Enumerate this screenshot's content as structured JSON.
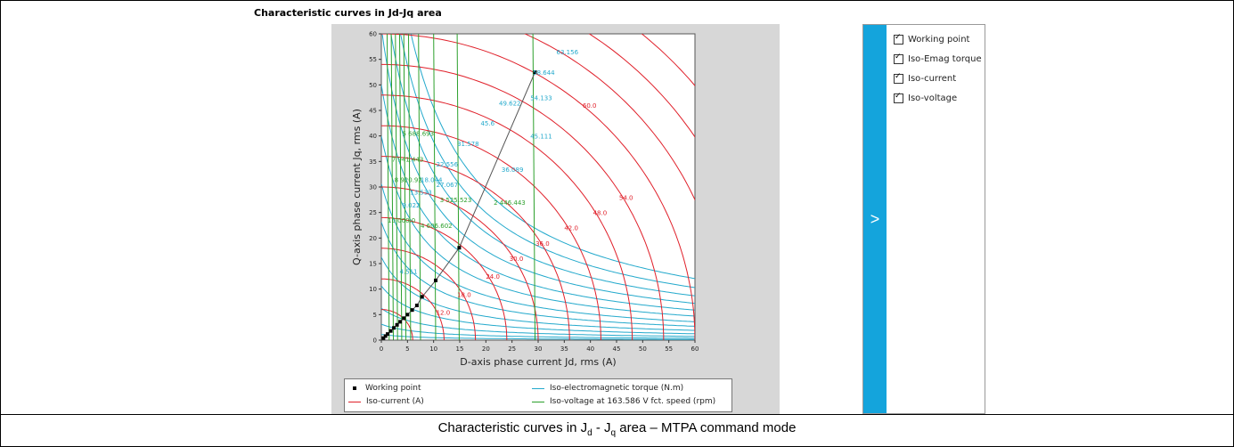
{
  "page_title": "Characteristic curves in Jd-Jq area",
  "caption": {
    "prefix": "Characteristic curves in J",
    "sub1": "d",
    "mid": " - J",
    "sub2": "q",
    "suffix": " area – MTPA command mode"
  },
  "options": [
    {
      "label": "Working point",
      "checked": true
    },
    {
      "label": "Iso-Emag torque",
      "checked": true
    },
    {
      "label": "Iso-current",
      "checked": true
    },
    {
      "label": "Iso-voltage",
      "checked": true
    }
  ],
  "panel_toggle_label": ">",
  "colors": {
    "background_panel": "#d7d7d7",
    "iso_current": "#e0202a",
    "iso_torque": "#23a9cc",
    "iso_voltage": "#2ca02c",
    "working_point": "#000000",
    "side_tab": "#14a4dc"
  },
  "chart_data": {
    "type": "line",
    "xlabel": "D-axis phase current Jd, rms (A)",
    "ylabel": "Q-axis phase current Jq, rms (A)",
    "xlim": [
      0,
      60
    ],
    "ylim": [
      0,
      60
    ],
    "xticks": [
      "0",
      "5",
      "10",
      "15",
      "20",
      "25",
      "30",
      "35",
      "40",
      "45",
      "50",
      "55",
      "60"
    ],
    "yticks": [
      "0",
      "5",
      "10",
      "15",
      "20",
      "25",
      "30",
      "35",
      "40",
      "45",
      "50",
      "55",
      "60"
    ],
    "legend": [
      {
        "name": "Working point",
        "kind": "marker"
      },
      {
        "name": "Iso-electromagnetic torque (N.m)",
        "kind": "line",
        "color": "#23a9cc"
      },
      {
        "name": "Iso-current (A)",
        "kind": "line",
        "color": "#e0202a"
      },
      {
        "name": "Iso-voltage at 163.586 V fct. speed (rpm)",
        "kind": "line",
        "color": "#2ca02c"
      }
    ],
    "iso_current": {
      "radii": [
        6,
        12,
        18,
        24,
        30,
        36,
        42,
        48,
        54,
        60,
        66,
        72,
        78
      ],
      "labels": [
        {
          "text": "12.0",
          "x": 10.5,
          "y": 5.0
        },
        {
          "text": "18.0",
          "x": 14.5,
          "y": 8.5
        },
        {
          "text": "24.0",
          "x": 20.0,
          "y": 12.0
        },
        {
          "text": "30.0",
          "x": 24.5,
          "y": 15.5
        },
        {
          "text": "36.0",
          "x": 29.5,
          "y": 18.5
        },
        {
          "text": "42.0",
          "x": 35.0,
          "y": 21.5
        },
        {
          "text": "48.0",
          "x": 40.5,
          "y": 24.5
        },
        {
          "text": "54.0",
          "x": 45.5,
          "y": 27.5
        },
        {
          "text": "60.0",
          "x": 38.5,
          "y": 45.5
        }
      ]
    },
    "iso_torque": {
      "offset": 8,
      "levels": [
        9,
        25,
        50,
        85,
        130,
        185,
        245,
        320,
        400,
        490,
        590,
        700,
        820
      ],
      "labels": [
        {
          "text": "63.156",
          "x": 33.5,
          "y": 56.0
        },
        {
          "text": "58.644",
          "x": 29.0,
          "y": 52.0
        },
        {
          "text": "54.133",
          "x": 28.5,
          "y": 47.0
        },
        {
          "text": "49.622",
          "x": 22.5,
          "y": 46.0
        },
        {
          "text": "45.6",
          "x": 19.0,
          "y": 42.0
        },
        {
          "text": "45.111",
          "x": 28.5,
          "y": 39.5
        },
        {
          "text": "31.578",
          "x": 14.5,
          "y": 38.0
        },
        {
          "text": "36.089",
          "x": 23.0,
          "y": 33.0
        },
        {
          "text": "22.556",
          "x": 10.5,
          "y": 34.0
        },
        {
          "text": "18.044",
          "x": 7.5,
          "y": 31.0
        },
        {
          "text": "27.067",
          "x": 10.5,
          "y": 30.0
        },
        {
          "text": "13.533",
          "x": 5.5,
          "y": 28.5
        },
        {
          "text": "9.022",
          "x": 4.0,
          "y": 26.0
        },
        {
          "text": "4.511",
          "x": 3.5,
          "y": 13.0
        }
      ]
    },
    "iso_voltage": {
      "x_positions": [
        1.5,
        2.3,
        3.1,
        3.9,
        4.7,
        5.6,
        7.5,
        10.4,
        14.9,
        29.4
      ],
      "labels": [
        {
          "text": "5 688.693",
          "x": 4.0,
          "y": 40.0
        },
        {
          "text": "7 941.443",
          "x": 2.0,
          "y": 35.0
        },
        {
          "text": "8 920.92",
          "x": 2.5,
          "y": 31.0
        },
        {
          "text": "10 000.0",
          "x": 1.2,
          "y": 23.0
        },
        {
          "text": "4 606.602",
          "x": 7.5,
          "y": 22.0
        },
        {
          "text": "3 525.523",
          "x": 11.2,
          "y": 27.0
        },
        {
          "text": "2 446.443",
          "x": 21.5,
          "y": 26.5
        }
      ]
    },
    "working_points": {
      "x": [
        0.4,
        0.8,
        1.2,
        1.8,
        2.4,
        3.0,
        3.6,
        4.3,
        5.0,
        5.9,
        6.8,
        7.8,
        10.4,
        14.9,
        29.4
      ],
      "y": [
        0.4,
        0.8,
        1.2,
        1.8,
        2.4,
        3.0,
        3.6,
        4.3,
        5.0,
        5.9,
        6.8,
        8.5,
        11.7,
        18.1,
        52.5
      ]
    }
  }
}
